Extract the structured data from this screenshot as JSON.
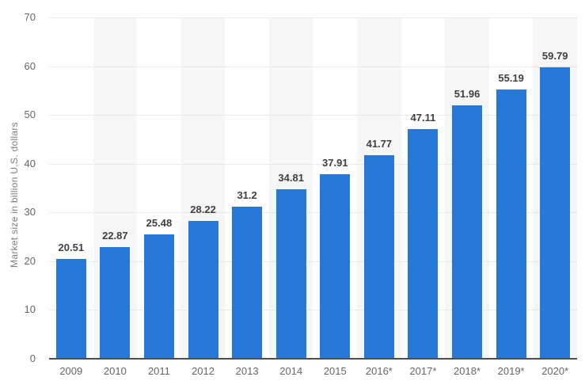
{
  "chart_data": {
    "type": "bar",
    "title": "",
    "xlabel": "",
    "ylabel": "Market size in billion U.S. dollars",
    "ylim": [
      0,
      70
    ],
    "yticks": [
      0,
      10,
      20,
      30,
      40,
      50,
      60,
      70
    ],
    "grid": "horizontal-dotted",
    "legend": "none",
    "plot_bands": "alternating light columns on even-numbered categories",
    "categories": [
      "2009",
      "2010",
      "2011",
      "2012",
      "2013",
      "2014",
      "2015",
      "2016*",
      "2017*",
      "2018*",
      "2019*",
      "2020*"
    ],
    "values": [
      20.51,
      22.87,
      25.48,
      28.22,
      31.2,
      34.81,
      37.91,
      41.77,
      47.11,
      51.96,
      55.19,
      59.79
    ],
    "value_labels": [
      "20.51",
      "22.87",
      "25.48",
      "28.22",
      "31.2",
      "34.81",
      "37.91",
      "41.77",
      "47.11",
      "51.96",
      "55.19",
      "59.79"
    ]
  },
  "colors": {
    "bar": "#2878d8",
    "value_label": "#404040",
    "axis_text": "#666666",
    "y_title_text": "#7d7d7d",
    "gridline": "#d8d8d8",
    "axis_line": "#4d4d4d",
    "column_band": "#f6f6f6",
    "background": "#ffffff"
  }
}
